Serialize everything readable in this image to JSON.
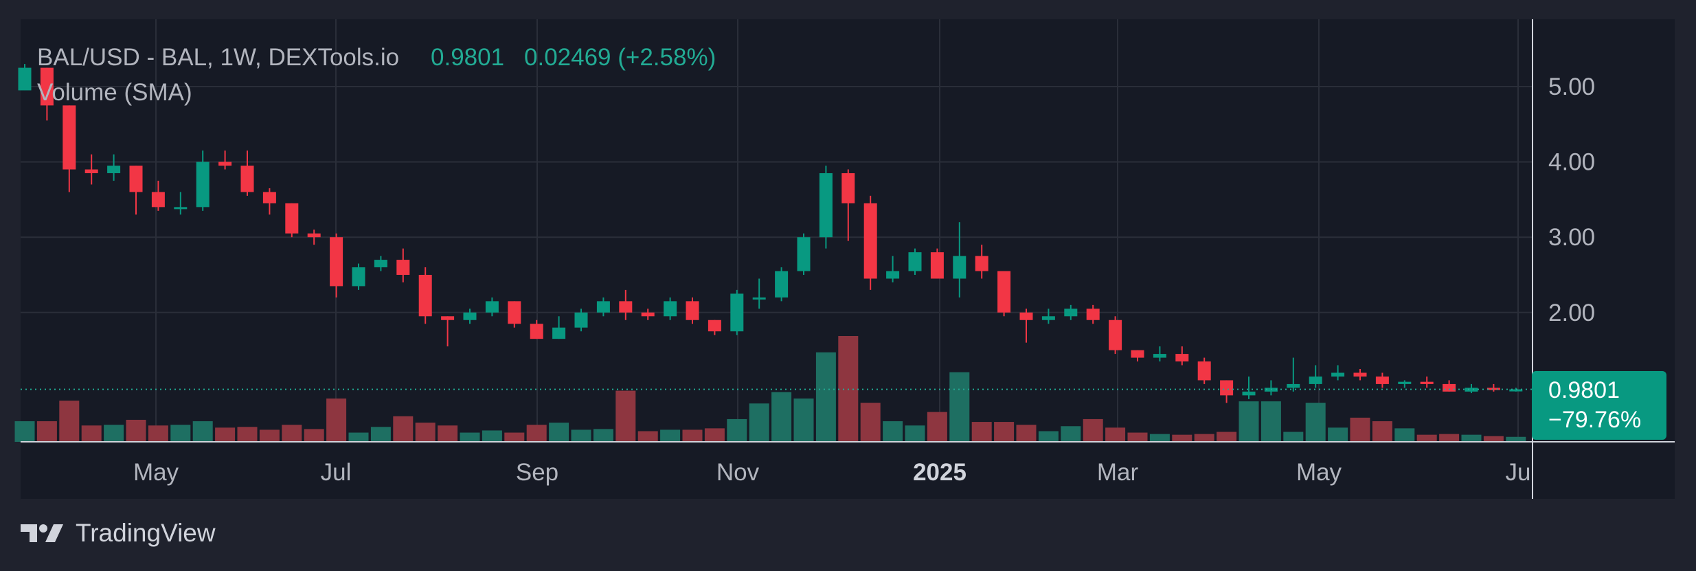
{
  "header": {
    "symbol_line": "BAL/USD - BAL, 1W, DEXTools.io",
    "last_price": "0.9801",
    "change": "0.02469 (+2.58%)",
    "volume_label": "Volume (SMA)"
  },
  "price_badge": {
    "price": "0.9801",
    "change_pct": "−79.76%"
  },
  "brand": {
    "name": "TradingView",
    "logo_icon": "tradingview-logo-icon"
  },
  "colors": {
    "background": "#1f222d",
    "pane": "#161a25",
    "up": "#089981",
    "down": "#f23645",
    "up_volume": "#1e6f62",
    "down_volume": "#8e3640",
    "grid": "#2a2e39",
    "text": "#b2b5be",
    "accent": "#22ab94"
  },
  "chart_data": {
    "type": "candlestick",
    "title": "BAL/USD - BAL, 1W, DEXTools.io",
    "interval": "1W",
    "y_axis": {
      "position": "right",
      "ticks": [
        "5.00",
        "4.00",
        "3.00",
        "2.00"
      ],
      "range": [
        0.0,
        5.7
      ]
    },
    "x_axis": {
      "ticks": [
        "May",
        "Jul",
        "Sep",
        "Nov",
        "2025",
        "Mar",
        "May",
        "Ju"
      ],
      "bold_ticks": [
        "2025"
      ]
    },
    "grid": true,
    "current_price": 0.9801,
    "series": [
      {
        "name": "BAL/USD",
        "ohlc": [
          [
            4.95,
            5.3,
            4.95,
            5.25
          ],
          [
            5.25,
            5.25,
            4.55,
            4.75
          ],
          [
            4.75,
            4.75,
            3.6,
            3.9
          ],
          [
            3.9,
            4.1,
            3.7,
            3.85
          ],
          [
            3.85,
            4.1,
            3.75,
            3.95
          ],
          [
            3.95,
            3.95,
            3.3,
            3.6
          ],
          [
            3.6,
            3.75,
            3.35,
            3.4
          ],
          [
            3.4,
            3.6,
            3.3,
            3.4
          ],
          [
            3.4,
            4.15,
            3.35,
            4.0
          ],
          [
            4.0,
            4.15,
            3.9,
            3.95
          ],
          [
            3.95,
            4.15,
            3.55,
            3.6
          ],
          [
            3.6,
            3.65,
            3.3,
            3.45
          ],
          [
            3.45,
            3.45,
            3.0,
            3.05
          ],
          [
            3.05,
            3.1,
            2.9,
            3.0
          ],
          [
            3.0,
            3.05,
            2.2,
            2.35
          ],
          [
            2.35,
            2.65,
            2.3,
            2.6
          ],
          [
            2.6,
            2.75,
            2.55,
            2.7
          ],
          [
            2.7,
            2.85,
            2.4,
            2.5
          ],
          [
            2.5,
            2.6,
            1.85,
            1.95
          ],
          [
            1.95,
            1.95,
            1.55,
            1.9
          ],
          [
            1.9,
            2.05,
            1.85,
            2.0
          ],
          [
            2.0,
            2.2,
            1.95,
            2.15
          ],
          [
            2.15,
            2.15,
            1.8,
            1.85
          ],
          [
            1.85,
            1.9,
            1.65,
            1.65
          ],
          [
            1.65,
            1.95,
            1.65,
            1.8
          ],
          [
            1.8,
            2.05,
            1.75,
            2.0
          ],
          [
            2.0,
            2.2,
            1.95,
            2.15
          ],
          [
            2.15,
            2.3,
            1.9,
            2.0
          ],
          [
            2.0,
            2.05,
            1.9,
            1.95
          ],
          [
            1.95,
            2.2,
            1.9,
            2.15
          ],
          [
            2.15,
            2.2,
            1.85,
            1.9
          ],
          [
            1.9,
            1.9,
            1.7,
            1.75
          ],
          [
            1.75,
            2.3,
            1.7,
            2.25
          ],
          [
            2.2,
            2.45,
            2.05,
            2.2
          ],
          [
            2.2,
            2.6,
            2.15,
            2.55
          ],
          [
            2.55,
            3.05,
            2.5,
            3.0
          ],
          [
            3.0,
            3.95,
            2.85,
            3.85
          ],
          [
            3.85,
            3.9,
            2.95,
            3.45
          ],
          [
            3.45,
            3.55,
            2.3,
            2.45
          ],
          [
            2.45,
            2.75,
            2.4,
            2.55
          ],
          [
            2.55,
            2.85,
            2.5,
            2.8
          ],
          [
            2.8,
            2.85,
            2.45,
            2.45
          ],
          [
            2.45,
            3.2,
            2.2,
            2.75
          ],
          [
            2.75,
            2.9,
            2.45,
            2.55
          ],
          [
            2.55,
            2.55,
            1.95,
            2.0
          ],
          [
            2.0,
            2.05,
            1.6,
            1.9
          ],
          [
            1.9,
            2.05,
            1.85,
            1.95
          ],
          [
            1.95,
            2.1,
            1.9,
            2.05
          ],
          [
            2.05,
            2.1,
            1.85,
            1.9
          ],
          [
            1.9,
            1.95,
            1.45,
            1.5
          ],
          [
            1.5,
            1.5,
            1.35,
            1.4
          ],
          [
            1.4,
            1.55,
            1.35,
            1.45
          ],
          [
            1.45,
            1.55,
            1.3,
            1.35
          ],
          [
            1.35,
            1.4,
            1.05,
            1.1
          ],
          [
            1.1,
            1.1,
            0.8,
            0.9
          ],
          [
            0.9,
            1.15,
            0.85,
            0.95
          ],
          [
            0.95,
            1.1,
            0.9,
            1.0
          ],
          [
            1.0,
            1.4,
            0.95,
            1.05
          ],
          [
            1.05,
            1.3,
            1.0,
            1.15
          ],
          [
            1.15,
            1.3,
            1.1,
            1.2
          ],
          [
            1.2,
            1.25,
            1.1,
            1.15
          ],
          [
            1.15,
            1.2,
            1.0,
            1.05
          ],
          [
            1.05,
            1.1,
            1.0,
            1.08
          ],
          [
            1.08,
            1.15,
            1.0,
            1.05
          ],
          [
            1.05,
            1.1,
            0.95,
            0.95
          ],
          [
            0.95,
            1.05,
            0.93,
            1.0
          ],
          [
            1.0,
            1.05,
            0.95,
            0.97
          ],
          [
            0.97,
            1.0,
            0.95,
            0.98
          ]
        ],
        "volume": [
          29,
          29,
          58,
          23,
          24,
          31,
          23,
          24,
          29,
          20,
          21,
          17,
          24,
          18,
          61,
          13,
          21,
          36,
          27,
          23,
          13,
          16,
          13,
          24,
          27,
          17,
          18,
          72,
          15,
          17,
          17,
          19,
          32,
          54,
          70,
          61,
          126,
          149,
          55,
          29,
          23,
          42,
          98,
          28,
          28,
          24,
          15,
          22,
          32,
          20,
          13,
          11,
          10,
          11,
          14,
          57,
          57,
          14,
          55,
          20,
          34,
          29,
          19,
          10,
          11,
          10,
          8,
          7
        ]
      }
    ]
  }
}
